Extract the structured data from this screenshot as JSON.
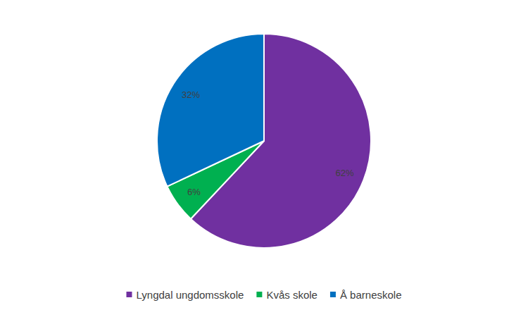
{
  "chart_data": {
    "type": "pie",
    "categories": [
      "Lyngdal ungdomsskole",
      "Kvås skole",
      "Å barneskole"
    ],
    "values": [
      62,
      6,
      32
    ],
    "value_labels": [
      "62%",
      "6%",
      "32%"
    ],
    "colors": [
      "#7030a0",
      "#00b050",
      "#0070c0"
    ],
    "data_labels": true,
    "legend": "bottom"
  }
}
